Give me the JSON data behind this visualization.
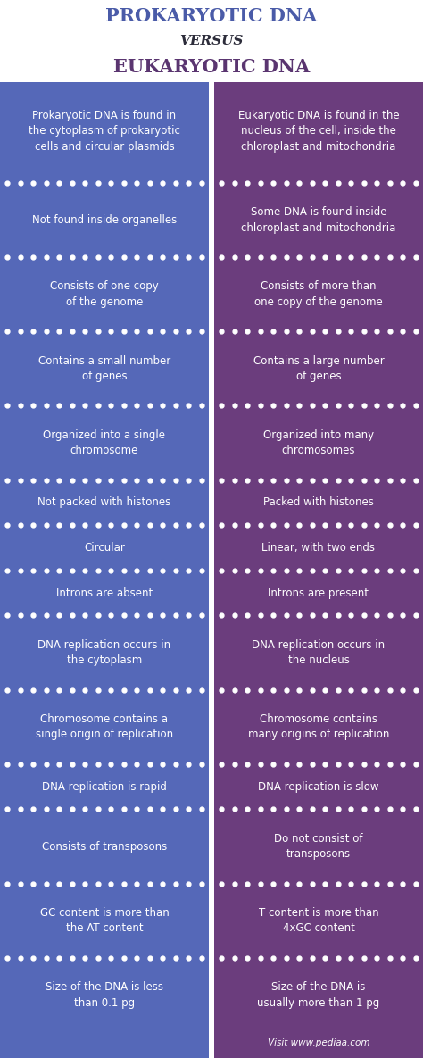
{
  "title_line1": "PROKARYOTIC DNA",
  "title_line2": "VERSUS",
  "title_line3": "EUKARYOTIC DNA",
  "title_color1": "#4a5ba8",
  "title_color2": "#2c2c3a",
  "title_color3": "#5a3570",
  "left_bg": "#5568b8",
  "right_bg": "#6b3d7d",
  "text_color": "#ffffff",
  "dot_color": "#ffffff",
  "rows": [
    {
      "left": "Prokaryotic DNA is found in\nthe cytoplasm of prokaryotic\ncells and circular plasmids",
      "right": "Eukaryotic DNA is found in the\nnucleus of the cell, inside the\nchloroplast and mitochondria",
      "lines": 3
    },
    {
      "left": "Not found inside organelles",
      "right": "Some DNA is found inside\nchloroplast and mitochondria",
      "lines": 2
    },
    {
      "left": "Consists of one copy\nof the genome",
      "right": "Consists of more than\none copy of the genome",
      "lines": 2
    },
    {
      "left": "Contains a small number\nof genes",
      "right": "Contains a large number\nof genes",
      "lines": 2
    },
    {
      "left": "Organized into a single\nchromosome",
      "right": "Organized into many\nchromosomes",
      "lines": 2
    },
    {
      "left": "Not packed with histones",
      "right": "Packed with histones",
      "lines": 1
    },
    {
      "left": "Circular",
      "right": "Linear, with two ends",
      "lines": 1
    },
    {
      "left": "Introns are absent",
      "right": "Introns are present",
      "lines": 1
    },
    {
      "left": "DNA replication occurs in\nthe cytoplasm",
      "right": "DNA replication occurs in\nthe nucleus",
      "lines": 2
    },
    {
      "left": "Chromosome contains a\nsingle origin of replication",
      "right": "Chromosome contains\nmany origins of replication",
      "lines": 2
    },
    {
      "left": "DNA replication is rapid",
      "right": "DNA replication is slow",
      "lines": 1
    },
    {
      "left": "Consists of transposons",
      "right": "Do not consist of\ntransposons",
      "lines": 2
    },
    {
      "left": "GC content is more than\nthe AT content",
      "right": "T content is more than\n4xGC content",
      "lines": 2
    },
    {
      "left": "Size of the DNA is less\nthan 0.1 pg",
      "right": "Size of the DNA is\nusually more than 1 pg",
      "lines": 2
    }
  ],
  "footer_text": "Visit www.pediaa.com",
  "fig_width": 4.74,
  "fig_height": 11.85
}
